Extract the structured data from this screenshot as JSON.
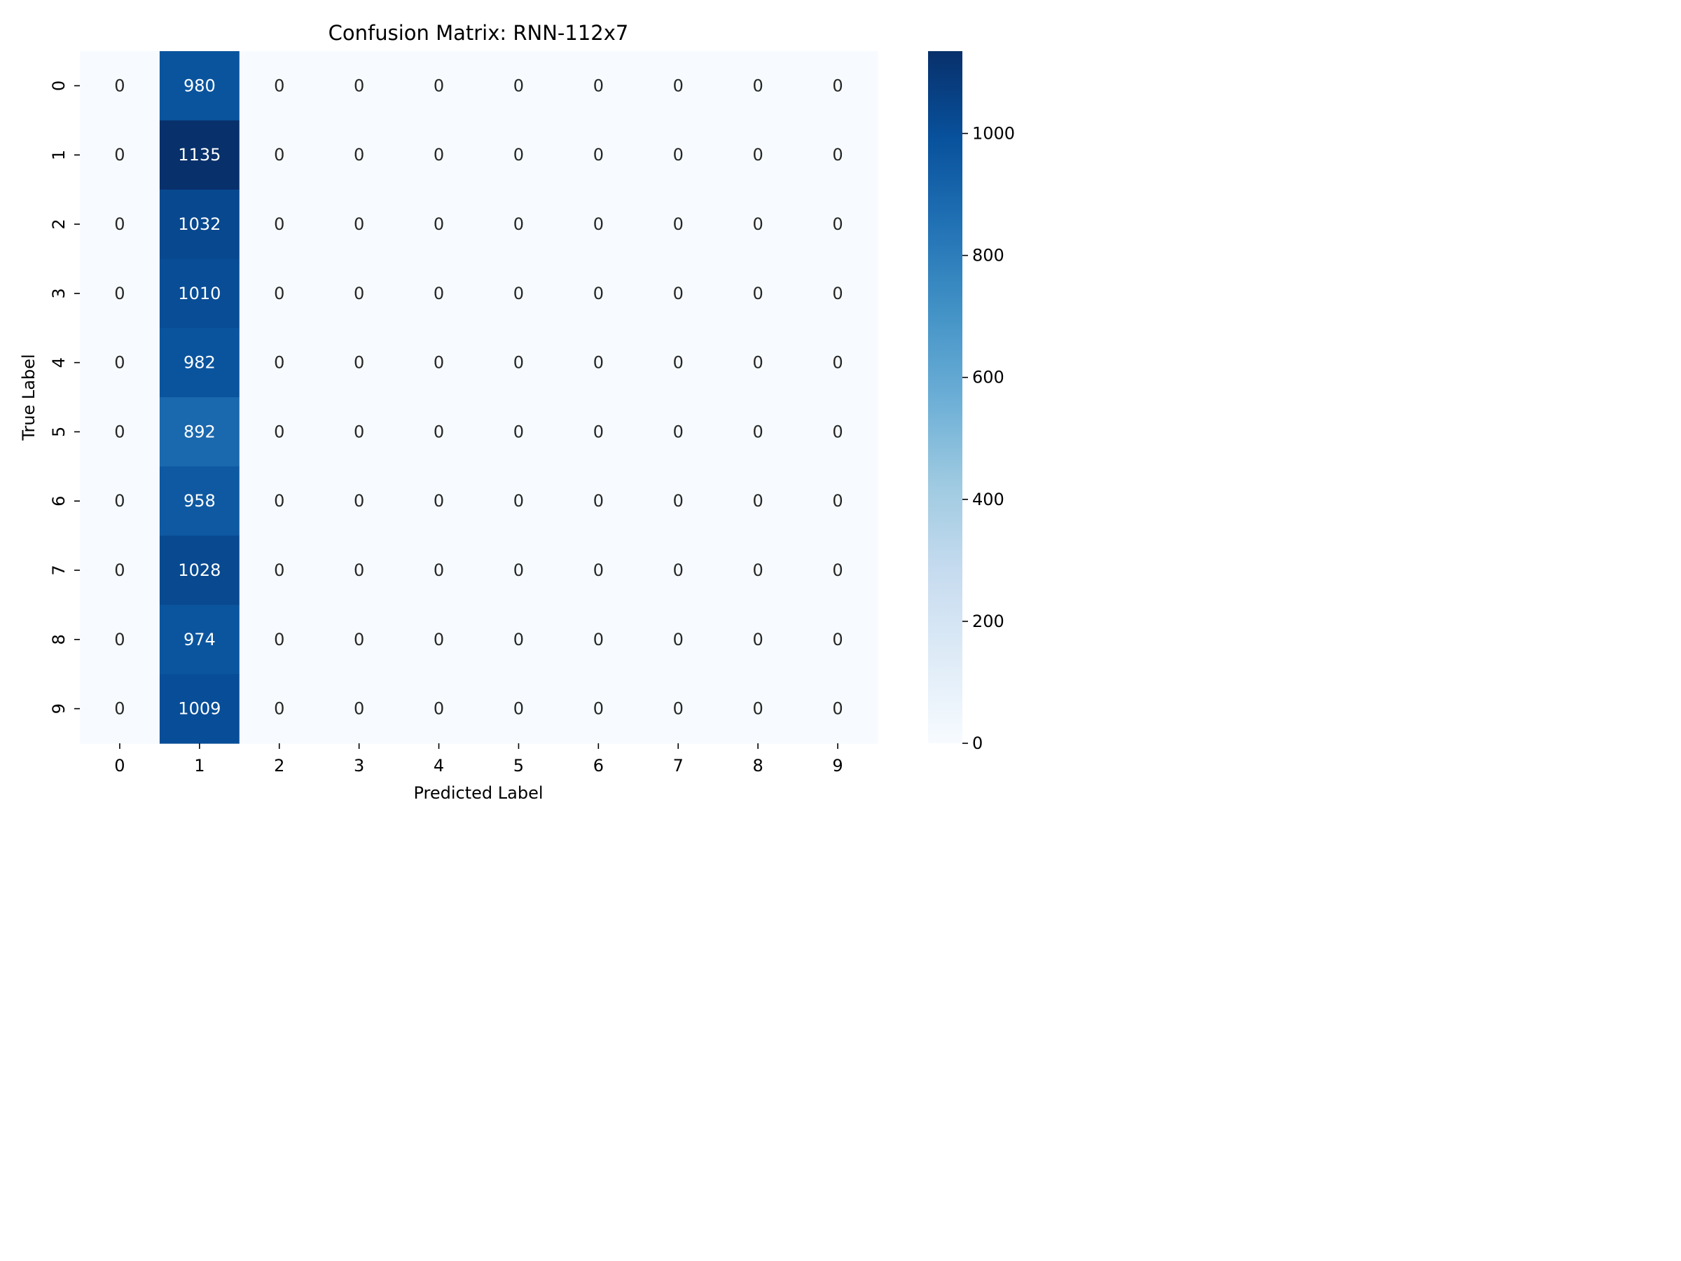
{
  "chart_data": {
    "type": "heatmap",
    "title": "Confusion Matrix: RNN-112x7",
    "xlabel": "Predicted Label",
    "ylabel": "True Label",
    "x_categories": [
      "0",
      "1",
      "2",
      "3",
      "4",
      "5",
      "6",
      "7",
      "8",
      "9"
    ],
    "y_categories": [
      "0",
      "1",
      "2",
      "3",
      "4",
      "5",
      "6",
      "7",
      "8",
      "9"
    ],
    "values": [
      [
        0,
        980,
        0,
        0,
        0,
        0,
        0,
        0,
        0,
        0
      ],
      [
        0,
        1135,
        0,
        0,
        0,
        0,
        0,
        0,
        0,
        0
      ],
      [
        0,
        1032,
        0,
        0,
        0,
        0,
        0,
        0,
        0,
        0
      ],
      [
        0,
        1010,
        0,
        0,
        0,
        0,
        0,
        0,
        0,
        0
      ],
      [
        0,
        982,
        0,
        0,
        0,
        0,
        0,
        0,
        0,
        0
      ],
      [
        0,
        892,
        0,
        0,
        0,
        0,
        0,
        0,
        0,
        0
      ],
      [
        0,
        958,
        0,
        0,
        0,
        0,
        0,
        0,
        0,
        0
      ],
      [
        0,
        1028,
        0,
        0,
        0,
        0,
        0,
        0,
        0,
        0
      ],
      [
        0,
        974,
        0,
        0,
        0,
        0,
        0,
        0,
        0,
        0
      ],
      [
        0,
        1009,
        0,
        0,
        0,
        0,
        0,
        0,
        0,
        0
      ]
    ],
    "colorbar": {
      "colormap": "Blues",
      "range": [
        0,
        1135
      ],
      "ticks": [
        0,
        200,
        400,
        600,
        800,
        1000
      ]
    },
    "colors": {
      "low": "#f7fbff",
      "high": "#08306b",
      "text_dark": "#262626",
      "text_light": "#ffffff"
    }
  }
}
